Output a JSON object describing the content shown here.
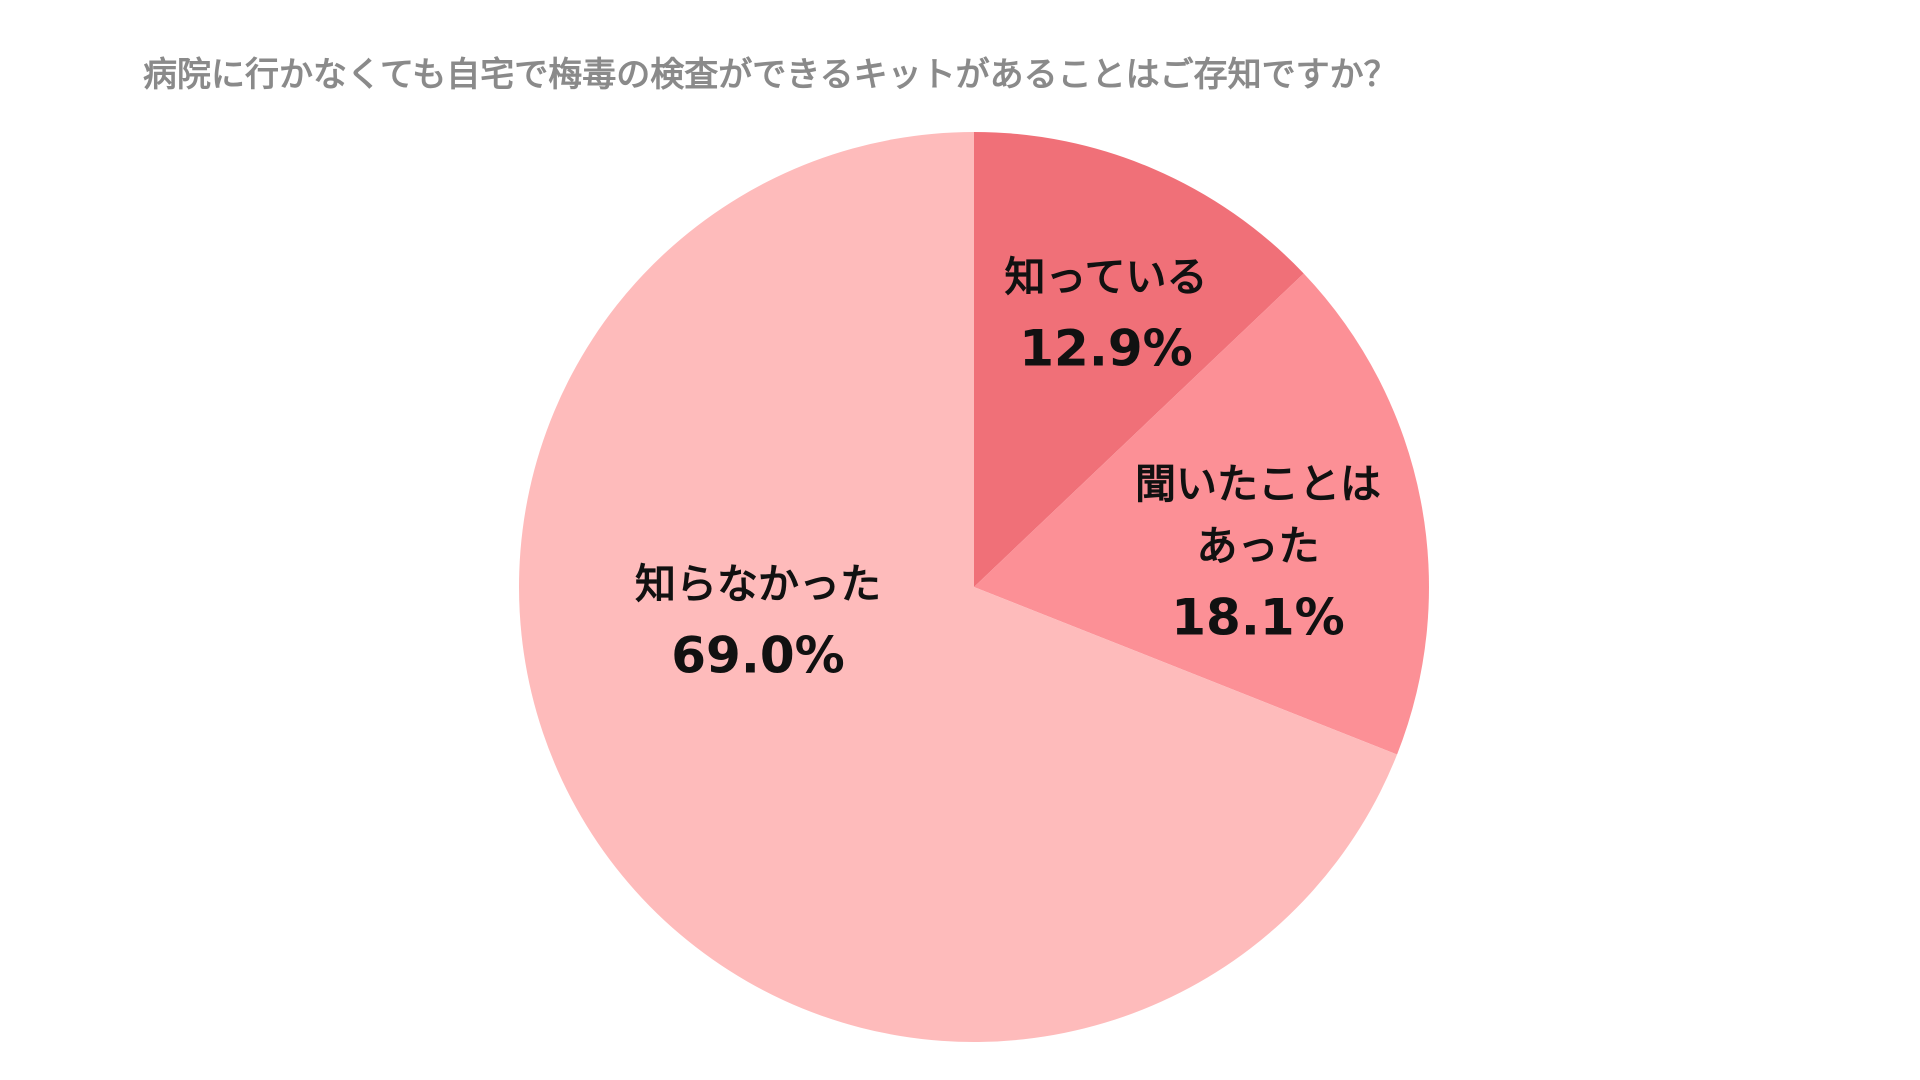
{
  "chart_data": {
    "type": "pie",
    "title": "病院に行かなくても自宅で梅毒の検査ができるキットがあることはご存知ですか？",
    "categories": [
      "知っている",
      "聞いたことは\nあった",
      "知らなかった"
    ],
    "values": [
      12.9,
      18.1,
      69.0
    ],
    "value_labels": [
      "12.9%",
      "18.1%",
      "69.0%"
    ],
    "colors": [
      "#f07078",
      "#fc9096",
      "#febbbb"
    ]
  }
}
